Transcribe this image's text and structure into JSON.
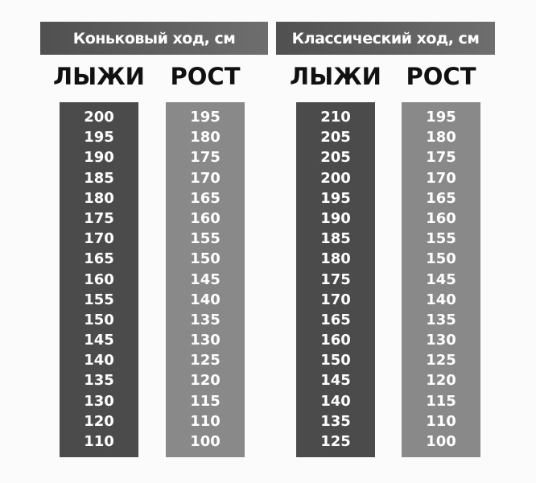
{
  "sections": [
    {
      "title": "Коньковый ход, см",
      "ski_label": "ЛЫЖИ",
      "height_label": "РОСТ",
      "ski": [
        "200",
        "195",
        "190",
        "185",
        "180",
        "175",
        "170",
        "165",
        "160",
        "155",
        "150",
        "145",
        "140",
        "135",
        "130",
        "120",
        "110"
      ],
      "height": [
        "195",
        "180",
        "175",
        "170",
        "165",
        "160",
        "155",
        "150",
        "145",
        "140",
        "135",
        "130",
        "125",
        "120",
        "115",
        "110",
        "100"
      ]
    },
    {
      "title": "Классический ход, см",
      "ski_label": "ЛЫЖИ",
      "height_label": "РОСТ",
      "ski": [
        "210",
        "205",
        "205",
        "200",
        "195",
        "190",
        "185",
        "180",
        "175",
        "170",
        "165",
        "160",
        "150",
        "145",
        "140",
        "135",
        "125"
      ],
      "height": [
        "195",
        "180",
        "175",
        "170",
        "165",
        "160",
        "155",
        "150",
        "145",
        "140",
        "135",
        "130",
        "125",
        "120",
        "115",
        "110",
        "100"
      ]
    }
  ],
  "colors": {
    "ski_column": "#4b4b4b",
    "height_column": "#898989",
    "banner": "#5a5a5a"
  }
}
